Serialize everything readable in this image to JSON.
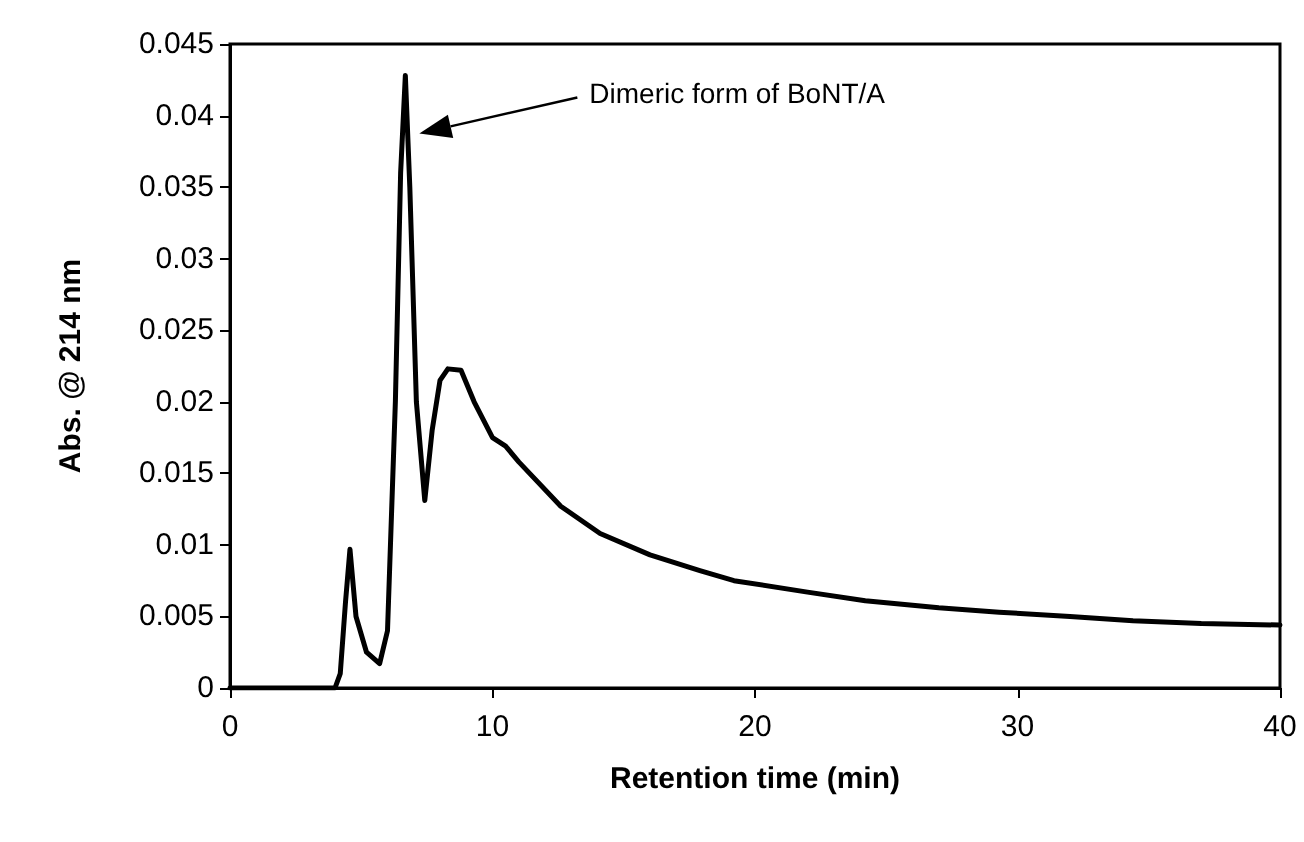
{
  "chart_data": {
    "type": "line",
    "xlabel": "Retention time (min)",
    "ylabel": "Abs. @ 214 nm",
    "color": "#000000",
    "x": [
      0,
      2,
      4.0,
      4.2,
      4.4,
      4.57,
      4.8,
      5.2,
      5.7,
      6.0,
      6.3,
      6.5,
      6.68,
      6.85,
      7.1,
      7.42,
      7.7,
      8.0,
      8.3,
      8.8,
      9.3,
      10.0,
      10.5,
      11.0,
      12.6,
      14.1,
      16.0,
      17.9,
      19.2,
      22.0,
      24.2,
      27.0,
      29.3,
      32.0,
      34.4,
      37.0,
      40
    ],
    "values": [
      0,
      0,
      0,
      0.001,
      0.006,
      0.0097,
      0.005,
      0.0025,
      0.0017,
      0.004,
      0.02,
      0.036,
      0.0428,
      0.035,
      0.02,
      0.0131,
      0.018,
      0.0215,
      0.0223,
      0.0222,
      0.02,
      0.0175,
      0.0169,
      0.0158,
      0.0127,
      0.0108,
      0.0093,
      0.0082,
      0.0075,
      0.0067,
      0.0061,
      0.0056,
      0.0053,
      0.005,
      0.0047,
      0.0045,
      0.0044
    ],
    "xlim": [
      0,
      40
    ],
    "xticks": [
      0,
      10,
      20,
      30,
      40
    ],
    "ylim": [
      0,
      0.045
    ],
    "yticks": [
      0,
      0.005,
      0.01,
      0.015,
      0.02,
      0.025,
      0.03,
      0.035,
      0.04,
      0.045
    ],
    "grid": false,
    "marker": "none",
    "line_style": "solid",
    "annotations": [
      "Dimeric form of BoNT/A"
    ]
  }
}
